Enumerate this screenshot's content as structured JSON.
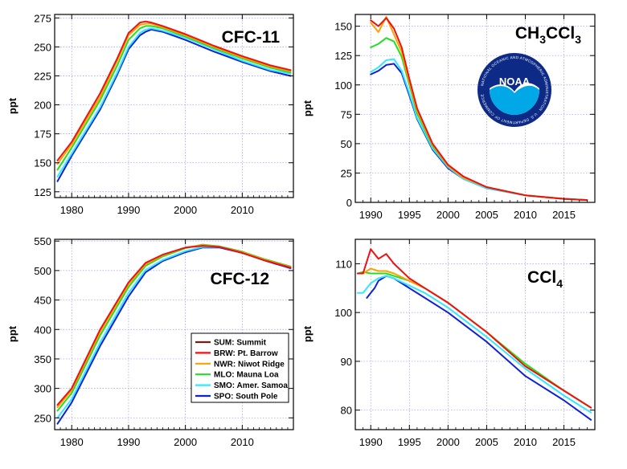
{
  "figure": {
    "legend": [
      {
        "code": "SUM",
        "label": "SUM: Summit",
        "color": "#7a1a12"
      },
      {
        "code": "BRW",
        "label": "BRW: Pt. Barrow",
        "color": "#f01010"
      },
      {
        "code": "NWR",
        "label": "NWR: Niwot Ridge",
        "color": "#ffa000"
      },
      {
        "code": "MLO",
        "label": "MLO: Mauna Loa",
        "color": "#20e020"
      },
      {
        "code": "SMO",
        "label": "SMO: Amer. Samoa",
        "color": "#30e8ff"
      },
      {
        "code": "SPO",
        "label": "SPO: South Pole",
        "color": "#1020d8"
      }
    ],
    "logo": {
      "name": "noaa-logo",
      "text": "NOAA",
      "ring_text": "NATIONAL OCEANIC AND ATMOSPHERIC ADMINISTRATION · U.S. DEPARTMENT OF COMMERCE"
    }
  },
  "chart_data": [
    {
      "id": "cfc11",
      "type": "line",
      "title": "CFC-11",
      "title_parts": [
        {
          "t": "CFC-11",
          "sub": false
        }
      ],
      "xlabel": "",
      "ylabel": "ppt",
      "xlim": [
        1977,
        2019
      ],
      "ylim": [
        120,
        278
      ],
      "xticks": [
        1980,
        1990,
        2000,
        2010
      ],
      "yticks": [
        125,
        150,
        175,
        200,
        225,
        250,
        275
      ],
      "grid": true,
      "series": [
        {
          "name": "BRW",
          "x": [
            1977.5,
            1980,
            1985,
            1988,
            1990,
            1992,
            1993,
            1994,
            1996,
            2000,
            2005,
            2010,
            2015,
            2018.5
          ],
          "y": [
            152,
            168,
            210,
            240,
            262,
            271,
            272,
            271,
            268,
            261,
            251,
            242,
            234,
            230
          ]
        },
        {
          "name": "NWR",
          "x": [
            1977.5,
            1980,
            1985,
            1988,
            1990,
            1992,
            1993,
            1994,
            1996,
            2000,
            2005,
            2010,
            2015,
            2018.5
          ],
          "y": [
            149,
            166,
            207,
            238,
            260,
            269,
            270,
            270,
            267,
            260,
            250,
            241,
            233,
            229
          ]
        },
        {
          "name": "MLO",
          "x": [
            1977.5,
            1980,
            1985,
            1988,
            1990,
            1992,
            1993,
            1994,
            1996,
            2000,
            2005,
            2010,
            2015,
            2018.5
          ],
          "y": [
            144,
            163,
            204,
            234,
            256,
            266,
            268,
            268,
            266,
            259,
            249,
            240,
            232,
            228
          ]
        },
        {
          "name": "SMO",
          "x": [
            1977.5,
            1980,
            1985,
            1988,
            1990,
            1992,
            1993,
            1994,
            1996,
            2000,
            2005,
            2010,
            2015,
            2018.5
          ],
          "y": [
            138,
            158,
            198,
            228,
            250,
            262,
            265,
            266,
            264,
            258,
            248,
            238,
            230,
            227
          ]
        },
        {
          "name": "SPO",
          "x": [
            1977.5,
            1980,
            1985,
            1988,
            1990,
            1992,
            1993,
            1994,
            1996,
            2000,
            2005,
            2010,
            2015,
            2018.5
          ],
          "y": [
            134,
            156,
            196,
            226,
            248,
            260,
            263,
            265,
            263,
            256,
            246,
            237,
            229,
            225
          ]
        }
      ]
    },
    {
      "id": "ch3ccl3",
      "type": "line",
      "title": "CH3CCl3",
      "title_parts": [
        {
          "t": "CH",
          "sub": false
        },
        {
          "t": "3",
          "sub": true
        },
        {
          "t": "CCl",
          "sub": false
        },
        {
          "t": "3",
          "sub": true
        }
      ],
      "xlabel": "",
      "ylabel": "ppt",
      "xlim": [
        1988,
        2019
      ],
      "ylim": [
        0,
        160
      ],
      "xticks": [
        1990,
        1995,
        2000,
        2005,
        2010,
        2015
      ],
      "yticks": [
        0,
        25,
        50,
        75,
        100,
        125,
        150
      ],
      "grid": true,
      "series": [
        {
          "name": "BRW",
          "x": [
            1990,
            1991,
            1992,
            1993,
            1994,
            1995,
            1996,
            1998,
            2000,
            2002,
            2005,
            2010,
            2015,
            2018
          ],
          "y": [
            155,
            150,
            157,
            148,
            132,
            105,
            80,
            50,
            32,
            22,
            13,
            6,
            3,
            2
          ]
        },
        {
          "name": "NWR",
          "x": [
            1990,
            1991,
            1992,
            1993,
            1994,
            1995,
            1996,
            1998,
            2000,
            2002,
            2005,
            2010,
            2015,
            2018
          ],
          "y": [
            153,
            145,
            158,
            143,
            128,
            102,
            78,
            49,
            31,
            21,
            13,
            6,
            3,
            2
          ]
        },
        {
          "name": "MLO",
          "x": [
            1990,
            1991,
            1992,
            1993,
            1994,
            1995,
            1996,
            1998,
            2000,
            2002,
            2005,
            2010,
            2015,
            2018
          ],
          "y": [
            132,
            135,
            140,
            137,
            124,
            100,
            76,
            48,
            31,
            21,
            13,
            6,
            3,
            2
          ]
        },
        {
          "name": "SMO",
          "x": [
            1990,
            1991,
            1992,
            1993,
            1994,
            1995,
            1996,
            1998,
            2000,
            2002,
            2005,
            2010,
            2015,
            2018
          ],
          "y": [
            111,
            115,
            121,
            122,
            112,
            93,
            72,
            46,
            30,
            20,
            12,
            6,
            3,
            2
          ]
        },
        {
          "name": "SPO",
          "x": [
            1990,
            1991,
            1992,
            1993,
            1994,
            1995,
            1996,
            1998,
            2000,
            2002,
            2005,
            2010,
            2015,
            2018
          ],
          "y": [
            109,
            112,
            117,
            118,
            110,
            91,
            71,
            45,
            29,
            20,
            12,
            6,
            3,
            2
          ]
        }
      ]
    },
    {
      "id": "cfc12",
      "type": "line",
      "title": "CFC-12",
      "title_parts": [
        {
          "t": "CFC-12",
          "sub": false
        }
      ],
      "xlabel": "",
      "ylabel": "ppt",
      "xlim": [
        1977,
        2019
      ],
      "ylim": [
        230,
        553
      ],
      "xticks": [
        1980,
        1990,
        2000,
        2010
      ],
      "yticks": [
        250,
        300,
        350,
        400,
        450,
        500,
        550
      ],
      "grid": true,
      "series": [
        {
          "name": "SUM",
          "x": [
            2004,
            2006,
            2008,
            2010,
            2012,
            2014,
            2016,
            2018.5
          ],
          "y": [
            542,
            540,
            535,
            530,
            524,
            517,
            511,
            505
          ]
        },
        {
          "name": "BRW",
          "x": [
            1977.5,
            1980,
            1985,
            1990,
            1993,
            1996,
            2000,
            2003,
            2006,
            2010,
            2014,
            2018.5
          ],
          "y": [
            272,
            300,
            400,
            480,
            513,
            527,
            539,
            542,
            540,
            530,
            517,
            505
          ]
        },
        {
          "name": "NWR",
          "x": [
            1977.5,
            1980,
            1985,
            1990,
            1993,
            1996,
            2000,
            2003,
            2006,
            2010,
            2014,
            2018.5
          ],
          "y": [
            268,
            297,
            396,
            477,
            511,
            526,
            539,
            543,
            540,
            531,
            518,
            506
          ]
        },
        {
          "name": "MLO",
          "x": [
            1977.5,
            1980,
            1985,
            1990,
            1993,
            1996,
            2000,
            2003,
            2006,
            2010,
            2014,
            2018.5
          ],
          "y": [
            262,
            292,
            390,
            472,
            508,
            524,
            538,
            544,
            541,
            532,
            519,
            507
          ]
        },
        {
          "name": "SMO",
          "x": [
            1977.5,
            1980,
            1985,
            1990,
            1993,
            1996,
            2000,
            2003,
            2006,
            2010,
            2014,
            2018.5
          ],
          "y": [
            250,
            282,
            378,
            462,
            501,
            518,
            533,
            540,
            540,
            531,
            518,
            506
          ]
        },
        {
          "name": "SPO",
          "x": [
            1977.5,
            1980,
            1985,
            1990,
            1993,
            1996,
            2000,
            2003,
            2006,
            2010,
            2014,
            2018.5
          ],
          "y": [
            240,
            276,
            372,
            456,
            497,
            516,
            531,
            539,
            539,
            530,
            517,
            504
          ]
        }
      ]
    },
    {
      "id": "ccl4",
      "type": "line",
      "title": "CCl4",
      "title_parts": [
        {
          "t": "CCl",
          "sub": false
        },
        {
          "t": "4",
          "sub": true
        }
      ],
      "xlabel": "",
      "ylabel": "ppt",
      "xlim": [
        1988,
        2019
      ],
      "ylim": [
        76,
        115
      ],
      "xticks": [
        1990,
        1995,
        2000,
        2005,
        2010,
        2015
      ],
      "yticks": [
        80,
        90,
        100,
        110
      ],
      "grid": true,
      "series": [
        {
          "name": "BRW",
          "x": [
            1988.3,
            1989,
            1990,
            1991,
            1992,
            1993,
            1995,
            1997,
            2000,
            2005,
            2010,
            2015,
            2018.5
          ],
          "y": [
            108,
            108,
            113,
            111,
            112,
            110,
            107,
            105,
            102,
            96,
            89,
            84,
            80.5
          ]
        },
        {
          "name": "NWR",
          "x": [
            1988.3,
            1989,
            1990,
            1991,
            1992,
            1993,
            1995,
            1997,
            2000,
            2005,
            2010,
            2015,
            2018.5
          ],
          "y": [
            108,
            108,
            109,
            108.5,
            108.5,
            108,
            106.5,
            105,
            102,
            96,
            89,
            84,
            80.5
          ]
        },
        {
          "name": "MLO",
          "x": [
            1988.3,
            1989,
            1990,
            1991,
            1992,
            1993,
            1995,
            1997,
            2000,
            2005,
            2010,
            2015,
            2018.5
          ],
          "y": [
            108,
            108.3,
            108,
            108,
            108,
            107.5,
            106.5,
            105,
            102,
            96,
            89.5,
            84,
            80.5
          ]
        },
        {
          "name": "SMO",
          "x": [
            1988.3,
            1989,
            1990,
            1991,
            1992,
            1993,
            1995,
            1997,
            2000,
            2005,
            2010,
            2015,
            2018.5
          ],
          "y": [
            104,
            104,
            106,
            107,
            107.5,
            107,
            105.5,
            104,
            101,
            95,
            88.5,
            83,
            79.5
          ]
        },
        {
          "name": "SPO",
          "x": [
            1989.5,
            1990,
            1990.5,
            1991,
            1992,
            1993,
            1995,
            1997,
            2000,
            2005,
            2010,
            2015,
            2018.5
          ],
          "y": [
            103,
            104,
            105,
            106.5,
            107.5,
            107,
            105,
            103,
            100,
            94,
            87,
            82,
            78
          ]
        }
      ]
    }
  ]
}
